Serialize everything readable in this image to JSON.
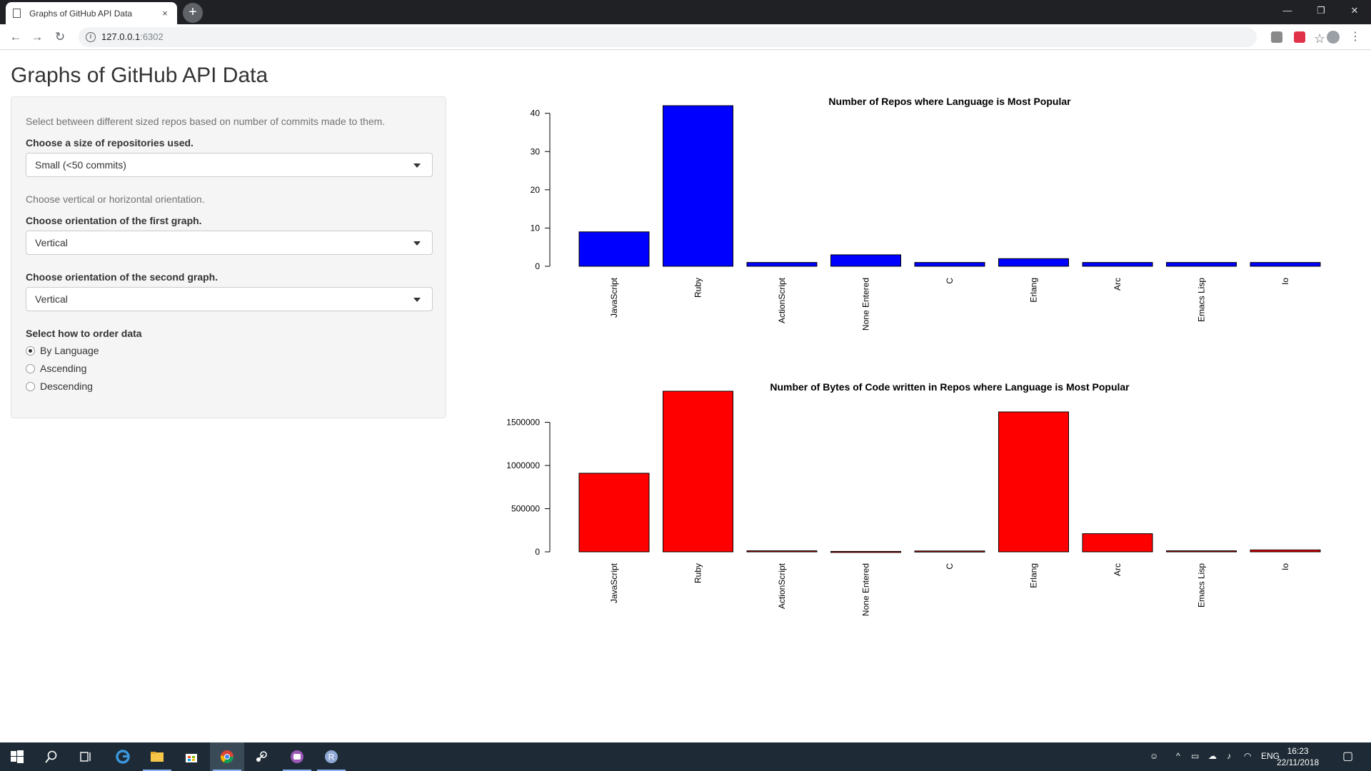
{
  "browser": {
    "tab_title": "Graphs of GitHub API Data",
    "tab_close": "×",
    "new_tab": "+",
    "url_host": "127.0.0.1",
    "url_port": ":6302",
    "window_minimize": "—",
    "window_restore": "❐",
    "window_close": "✕"
  },
  "page": {
    "title": "Graphs of GitHub API Data"
  },
  "sidebar": {
    "help_size": "Select between different sized repos based on number of commits made to them.",
    "size_label": "Choose a size of repositories used.",
    "size_value": "Small (<50 commits)",
    "help_orientation": "Choose vertical or horizontal orientation.",
    "orient1_label": "Choose orientation of the first graph.",
    "orient1_value": "Vertical",
    "orient2_label": "Choose orientation of the second graph.",
    "orient2_value": "Vertical",
    "order_label": "Select how to order data",
    "order_options": [
      "By Language",
      "Ascending",
      "Descending"
    ],
    "order_selected": "By Language"
  },
  "chart_data": [
    {
      "type": "bar",
      "title": "Number of Repos where Language is Most Popular",
      "categories": [
        "JavaScript",
        "Ruby",
        "ActionScript",
        "None Entered",
        "C",
        "Erlang",
        "Arc",
        "Emacs Lisp",
        "Io"
      ],
      "values": [
        9,
        42,
        1,
        3,
        1,
        2,
        1,
        1,
        1
      ],
      "yticks": [
        0,
        10,
        20,
        30,
        40
      ],
      "ylim": [
        0,
        42
      ],
      "color": "#0000ff",
      "grid": false
    },
    {
      "type": "bar",
      "title": "Number of Bytes of Code written in Repos where Language is Most Popular",
      "categories": [
        "JavaScript",
        "Ruby",
        "ActionScript",
        "None Entered",
        "C",
        "Erlang",
        "Arc",
        "Emacs Lisp",
        "Io"
      ],
      "values": [
        910000,
        1860000,
        12000,
        5000,
        10000,
        1620000,
        210000,
        12000,
        22000
      ],
      "yticks": [
        0,
        500000,
        1000000,
        1500000
      ],
      "ylim": [
        0,
        1860000
      ],
      "color": "#ff0000",
      "grid": false
    }
  ],
  "taskbar": {
    "lang": "ENG",
    "time": "16:23",
    "date": "22/11/2018"
  }
}
